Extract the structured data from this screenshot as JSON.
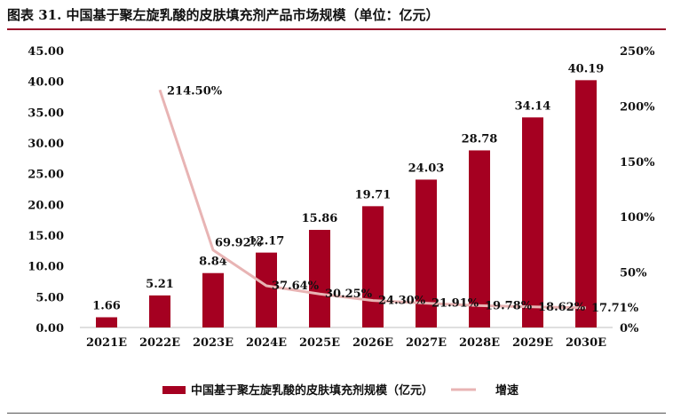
{
  "header": {
    "title": "图表 31. 中国基于聚左旋乳酸的皮肤填充剂产品市场规模（单位：亿元）"
  },
  "chart_data": {
    "type": "bar",
    "categories": [
      "2021E",
      "2022E",
      "2023E",
      "2024E",
      "2025E",
      "2026E",
      "2027E",
      "2028E",
      "2029E",
      "2030E"
    ],
    "series": [
      {
        "name": "中国基于聚左旋乳酸的皮肤填充剂规模（亿元）",
        "type": "bar",
        "axis": "left",
        "color": "#a50021",
        "values": [
          1.66,
          5.21,
          8.84,
          12.17,
          15.86,
          19.71,
          24.03,
          28.78,
          34.14,
          40.19
        ],
        "labels": [
          "1.66",
          "5.21",
          "8.84",
          "12.17",
          "15.86",
          "19.71",
          "24.03",
          "28.78",
          "34.14",
          "40.19"
        ]
      },
      {
        "name": "增速",
        "type": "line",
        "axis": "right",
        "color": "#e8b4b4",
        "values": [
          null,
          214.5,
          69.92,
          37.64,
          30.25,
          24.3,
          21.91,
          19.78,
          18.62,
          17.71
        ],
        "labels": [
          "",
          "214.50%",
          "69.92%",
          "37.64%",
          "30.25%",
          "24.30%",
          "21.91%",
          "19.78%",
          "18.62%",
          "17.71%"
        ]
      }
    ],
    "y_left": {
      "ylim": [
        0,
        45
      ],
      "ticks": [
        "0.00",
        "5.00",
        "10.00",
        "15.00",
        "20.00",
        "25.00",
        "30.00",
        "35.00",
        "40.00",
        "45.00"
      ]
    },
    "y_right": {
      "ylim": [
        0,
        250
      ],
      "ticks": [
        "0%",
        "50%",
        "100%",
        "150%",
        "200%",
        "250%"
      ]
    },
    "grid": false,
    "legend": "bottom-center"
  }
}
